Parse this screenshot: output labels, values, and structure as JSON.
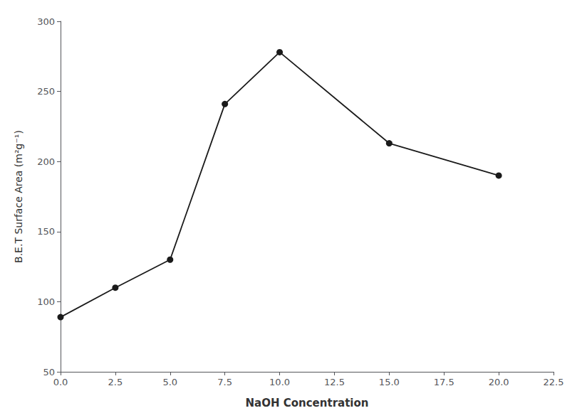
{
  "chart_data": {
    "type": "line",
    "x": [
      0.0,
      2.5,
      5.0,
      7.5,
      10.0,
      15.0,
      20.0
    ],
    "values": [
      89,
      110,
      130,
      241,
      278,
      213,
      190
    ],
    "xlabel": "NaOH Concentration",
    "ylabel": "B.E.T Surface Area (m²g⁻¹)",
    "xlim": [
      0.0,
      22.5
    ],
    "ylim": [
      50,
      300
    ],
    "xticks": [
      {
        "value": 0.0,
        "label": "0.0"
      },
      2.5,
      {
        "value": 5.0,
        "label": "5.0"
      },
      7.5,
      {
        "value": 10.0,
        "label": "10.0"
      },
      12.5,
      {
        "value": 15.0,
        "label": "15.0"
      },
      17.5,
      {
        "value": 20.0,
        "label": "20.0"
      },
      22.5
    ],
    "yticks": [
      50,
      100,
      150,
      200,
      250,
      300
    ],
    "color": "#1a1a1a",
    "marker": "circle",
    "grid": false
  }
}
